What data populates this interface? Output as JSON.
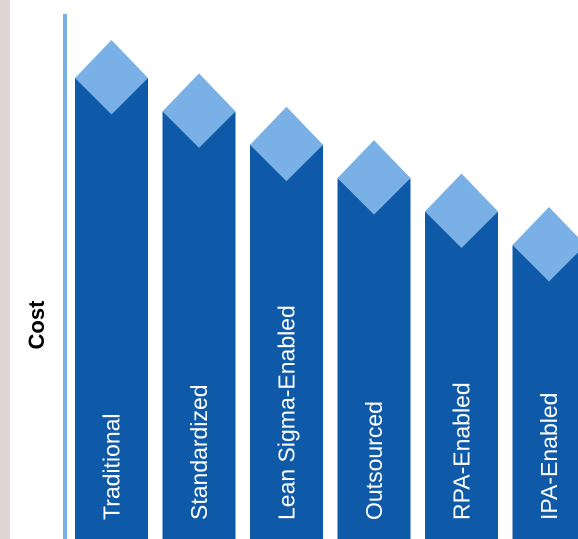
{
  "chart_data": {
    "type": "bar",
    "categories": [
      "Traditional",
      "Standardized",
      "Lean Sigma-Enabled",
      "Outsourced",
      "RPA-Enabled",
      "IPA-Enabled"
    ],
    "values": [
      100,
      93,
      86,
      79,
      72,
      65
    ],
    "ylabel": "Cost",
    "xlabel": "",
    "title": "",
    "grid": false,
    "legend": "none",
    "colors": {
      "bar": "#0f5aa8",
      "cap": "#79b1e6",
      "axis": "#79b1e6",
      "edge": "#ddd6d2"
    }
  }
}
